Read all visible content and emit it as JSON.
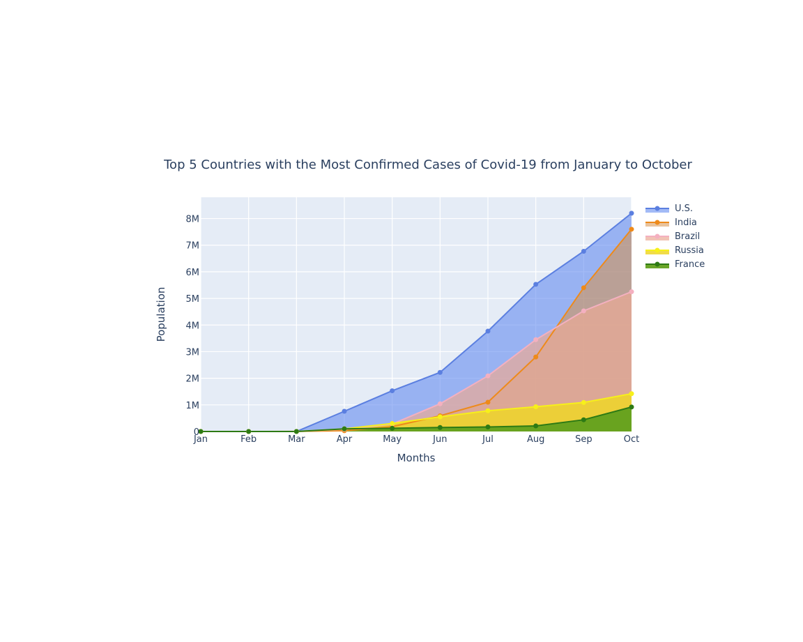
{
  "chart_data": {
    "type": "area",
    "title": "Top 5 Countries with the Most Confirmed Cases of Covid-19 from January to October",
    "xlabel": "Months",
    "ylabel": "Population",
    "categories": [
      "Jan",
      "Feb",
      "Mar",
      "Apr",
      "May",
      "Jun",
      "Jul",
      "Aug",
      "Sep",
      "Oct"
    ],
    "ylim": [
      0,
      8800000
    ],
    "y_ticks": [
      {
        "value": 0,
        "label": "0"
      },
      {
        "value": 1000000,
        "label": "1M"
      },
      {
        "value": 2000000,
        "label": "2M"
      },
      {
        "value": 3000000,
        "label": "3M"
      },
      {
        "value": 4000000,
        "label": "4M"
      },
      {
        "value": 5000000,
        "label": "5M"
      },
      {
        "value": 6000000,
        "label": "6M"
      },
      {
        "value": 7000000,
        "label": "7M"
      },
      {
        "value": 8000000,
        "label": "8M"
      }
    ],
    "grid": true,
    "legend_position": "top-right",
    "background_color": "#e5ecf6",
    "series": [
      {
        "name": "U.S.",
        "color": "#5b7fe0",
        "fill": "rgba(100,140,240,0.6)",
        "values": [
          0,
          10,
          100,
          760000,
          1530000,
          2220000,
          3770000,
          5530000,
          6770000,
          8200000
        ]
      },
      {
        "name": "India",
        "color": "#ee8a1a",
        "fill": "rgba(215,145,75,0.55)",
        "values": [
          0,
          0,
          1500,
          30000,
          180000,
          590000,
          1100000,
          2800000,
          5400000,
          7600000
        ]
      },
      {
        "name": "Brazil",
        "color": "#f4b0c0",
        "fill": "rgba(235,170,150,0.7)",
        "values": [
          0,
          0,
          1000,
          80000,
          280000,
          1040000,
          2090000,
          3450000,
          4530000,
          5250000
        ]
      },
      {
        "name": "Russia",
        "color": "#f7f01a",
        "fill": "rgba(238,214,40,0.85)",
        "values": [
          0,
          0,
          100,
          100000,
          300000,
          550000,
          780000,
          930000,
          1090000,
          1420000
        ]
      },
      {
        "name": "France",
        "color": "#2d7a14",
        "fill": "rgba(98,160,30,0.95)",
        "values": [
          0,
          10,
          100,
          100000,
          120000,
          150000,
          170000,
          210000,
          440000,
          920000
        ]
      }
    ]
  }
}
